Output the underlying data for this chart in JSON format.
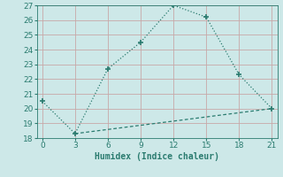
{
  "line1_x": [
    0,
    3,
    6,
    9,
    12,
    15,
    18,
    21
  ],
  "line1_y": [
    20.5,
    18.3,
    22.7,
    24.5,
    27.0,
    26.2,
    22.3,
    20.0
  ],
  "line2_x": [
    3,
    21
  ],
  "line2_y": [
    18.3,
    20.0
  ],
  "color": "#2a7b6f",
  "xlabel": "Humidex (Indice chaleur)",
  "xlim": [
    -0.5,
    21.5
  ],
  "ylim": [
    18,
    27
  ],
  "xticks": [
    0,
    3,
    6,
    9,
    12,
    15,
    18,
    21
  ],
  "yticks": [
    18,
    19,
    20,
    21,
    22,
    23,
    24,
    25,
    26,
    27
  ],
  "bg_color": "#cde8e8",
  "grid_color": "#c0d8d8"
}
